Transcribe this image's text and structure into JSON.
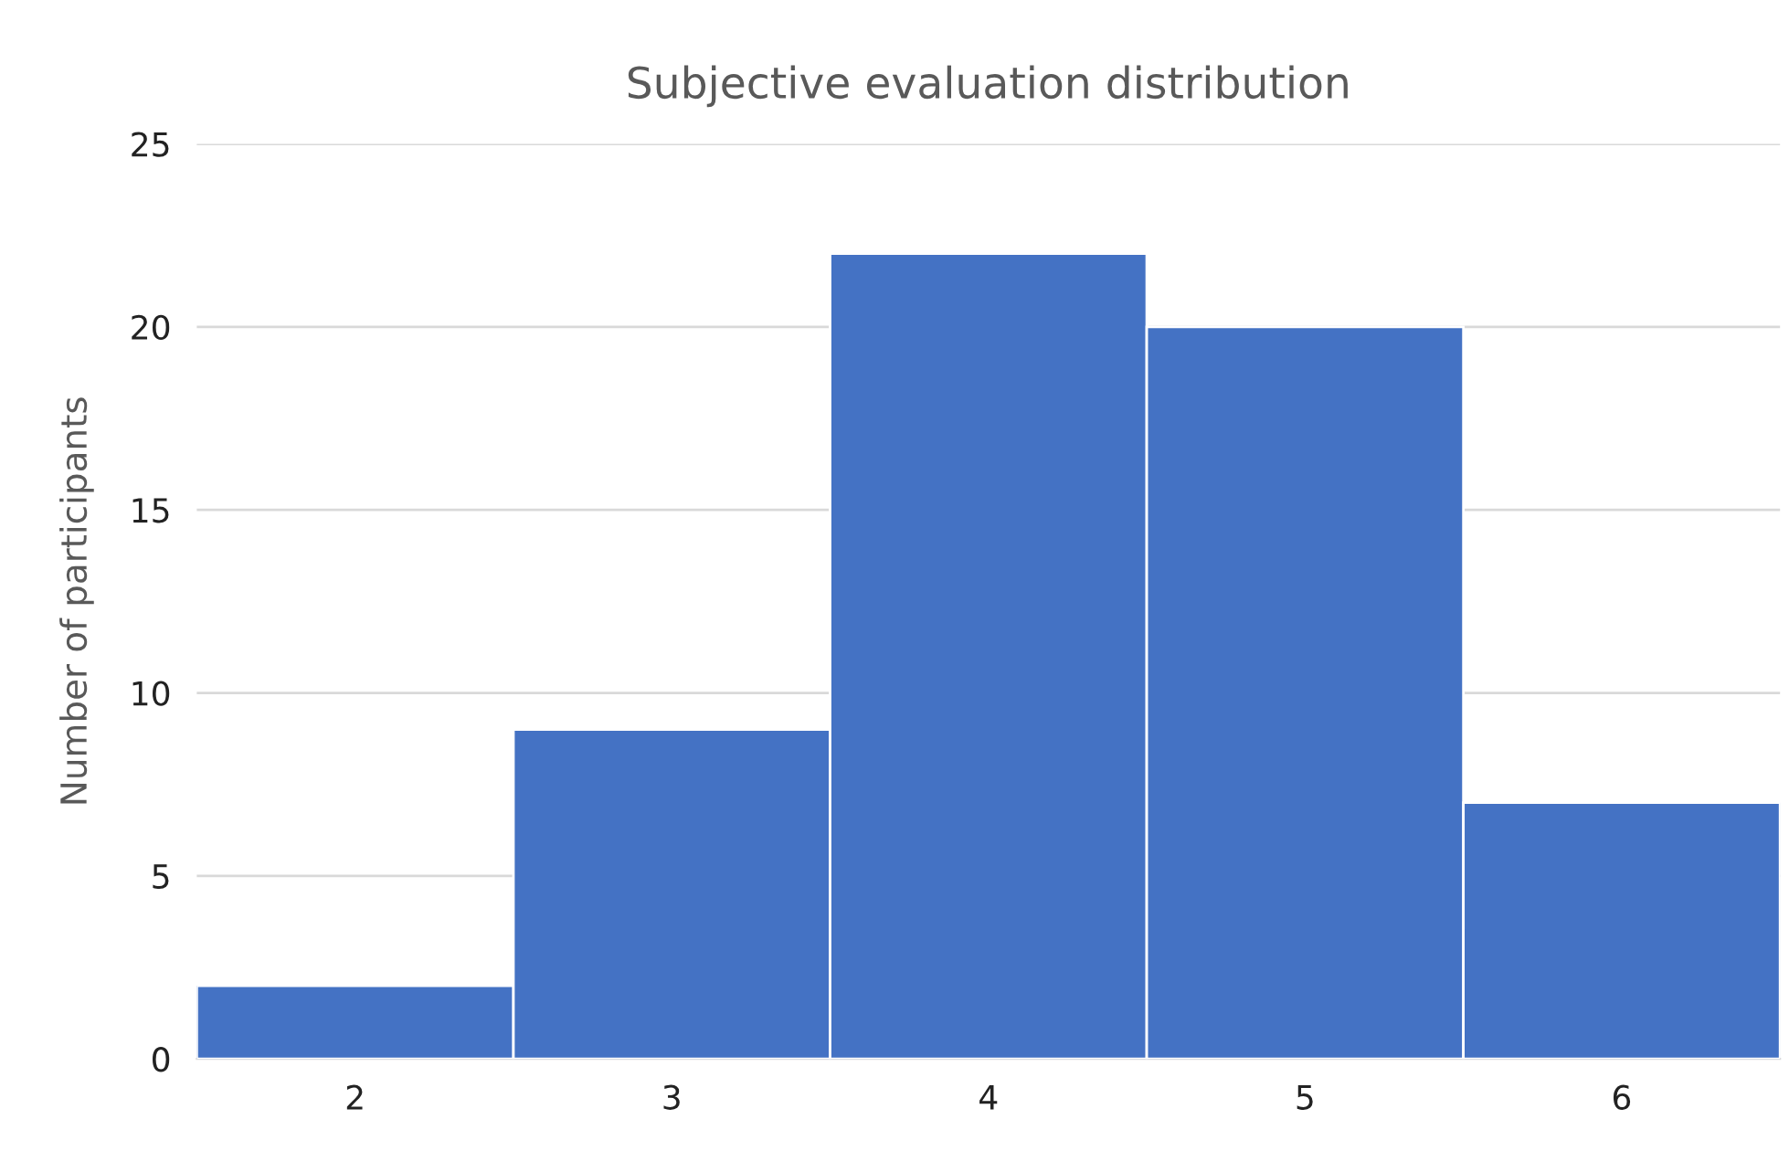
{
  "chart_data": {
    "type": "bar",
    "title": "Subjective evaluation distribution",
    "ylabel": "Number of participants",
    "categories": [
      "2",
      "3",
      "4",
      "5",
      "6"
    ],
    "values": [
      2,
      9,
      22,
      20,
      7
    ],
    "color": "#4472c4",
    "ylim": [
      0,
      25
    ],
    "yticks": [
      0,
      5,
      10,
      15,
      20,
      25
    ],
    "grid": "y",
    "legend": false
  }
}
